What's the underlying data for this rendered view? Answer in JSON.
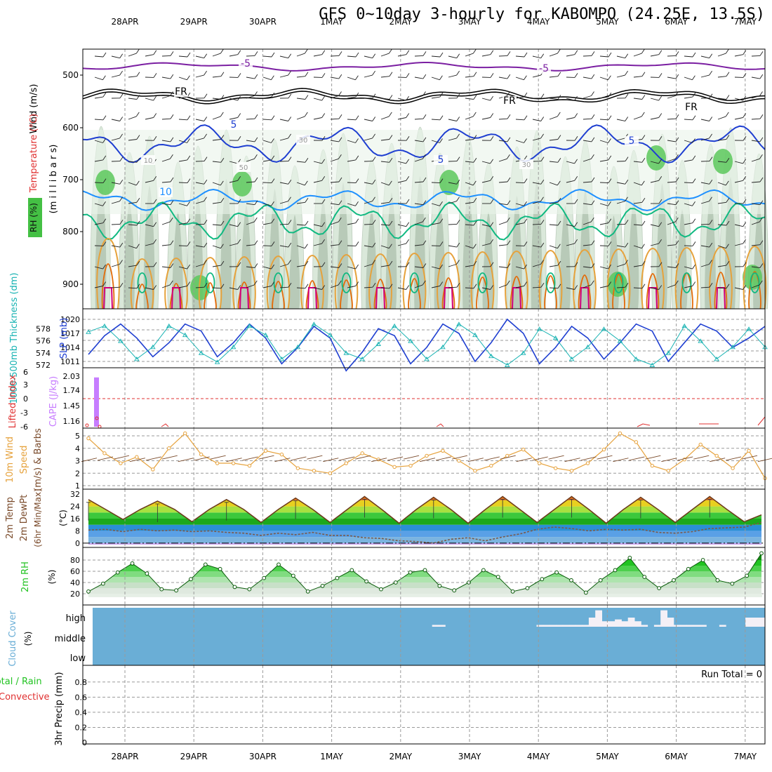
{
  "title": "GFS 0~10day 3-hourly for KABOMPO (24.25E, 13.5S)",
  "colors": {
    "purple": "#7b1fa2",
    "black": "#000000",
    "blue": "#1f3fd1",
    "lightblue": "#1e90ff",
    "teal": "#10b981",
    "orange": "#e6a23c",
    "darkorange": "#e36c0a",
    "magenta": "#d1007a",
    "cyan": "#19b3b3",
    "sea": "#6aaed6",
    "green": "#22c322",
    "rhgray": "#8fa68f",
    "violet": "#c77dff",
    "red": "#e03030",
    "brown": "#7a4a2a"
  },
  "chart_data": [
    {
      "type": "heatmap",
      "title": "Wind / Temperature (°C) / RH (%)",
      "ylabel": "(millibars)",
      "ylabel_parts": [
        "Wind (m/s)",
        "Temperature (°C)",
        "RH (%)"
      ],
      "ylabel_millibars": "(m i l l i b a r s)",
      "dates": [
        "28APR",
        "29APR",
        "30APR",
        "1MAY",
        "2MAY",
        "3MAY",
        "4MAY",
        "5MAY",
        "6MAY",
        "7MAY"
      ],
      "pressure_ticks": [
        500,
        600,
        700,
        800,
        900
      ],
      "ylim": [
        450,
        950
      ],
      "contour_labels": [
        "-5",
        "FR",
        "FR",
        "FR",
        "-5",
        "5",
        "5",
        "5",
        "10",
        "30",
        "30",
        "10",
        "50"
      ]
    },
    {
      "type": "line",
      "ylabel_left": "1000-500mb Thickness (dm)",
      "ylabel_right": "SLP (mb)",
      "left_ticks": [
        572,
        574,
        576,
        578
      ],
      "right_ticks": [
        1011,
        1014,
        1017,
        1020
      ],
      "series": [
        {
          "name": "SLP (mb)",
          "values": [
            1012.5,
            1016.5,
            1019,
            1016,
            1012,
            1015,
            1019,
            1017.5,
            1012,
            1015,
            1019,
            1016,
            1010.5,
            1014,
            1018.5,
            1016,
            1009,
            1013,
            1018,
            1016.5,
            1010.5,
            1014,
            1019,
            1017,
            1011,
            1015,
            1020,
            1017,
            1010.5,
            1014,
            1018.5,
            1016,
            1011.5,
            1015,
            1019,
            1017.5,
            1011,
            1015,
            1019,
            1017.5,
            1014,
            1016,
            1018.5
          ]
        },
        {
          "name": "1000-500mb Thickness (dm)",
          "values": [
            577.5,
            578.5,
            576,
            573,
            575,
            578.5,
            577,
            574,
            572.5,
            575,
            578.5,
            577,
            573,
            575,
            578.8,
            577,
            574,
            573,
            575.5,
            578.5,
            576,
            573,
            575,
            578.8,
            577,
            573.5,
            572,
            574,
            578,
            576.5,
            573,
            575,
            578,
            576,
            573,
            572,
            574,
            578.5,
            576,
            573,
            575,
            578,
            575
          ]
        }
      ]
    },
    {
      "type": "bar",
      "ylabel_left": "Lifted Index",
      "ylabel_right": "CAPE (J/kg)",
      "left_ticks": [
        "6",
        "3",
        "0",
        "-3",
        "-6"
      ],
      "right_ticks": [
        "1.16",
        "1.45",
        "1.74",
        "2.03"
      ],
      "bars": [
        {
          "day_index": 0.12,
          "value": 2.03
        }
      ]
    },
    {
      "type": "line",
      "ylabel": "10m Wind Speed (m/s) & Barbs",
      "ylabel_parts": [
        "10m Wind",
        "Speed",
        "(m/s) & Barbs"
      ],
      "yticks": [
        1,
        2,
        3,
        4,
        5
      ],
      "ylim": [
        0.8,
        5.5
      ],
      "series": [
        {
          "name": "10m Wind Speed",
          "values": [
            4.8,
            3.6,
            2.8,
            3.3,
            2.3,
            4.0,
            5.2,
            3.5,
            2.8,
            2.8,
            2.6,
            3.8,
            3.5,
            2.4,
            2.2,
            2.0,
            2.8,
            3.6,
            3.1,
            2.5,
            2.6,
            3.4,
            3.8,
            3.0,
            2.2,
            2.6,
            3.4,
            3.9,
            2.8,
            2.4,
            2.2,
            2.8,
            3.9,
            5.2,
            4.5,
            2.6,
            2.2,
            3.1,
            4.3,
            3.4,
            2.4,
            3.8,
            1.6
          ]
        }
      ]
    },
    {
      "type": "area",
      "ylabel": "2m Temp 2m DewPt (6hr Min/Max) (°C)",
      "ylabel_parts": [
        "2m Temp",
        "2m DewPt",
        "(6hr Min/Max)",
        "(°C)"
      ],
      "yticks": [
        0,
        8,
        16,
        24,
        32
      ],
      "ylim": [
        -1,
        33
      ],
      "series": [
        {
          "name": "2m Temp",
          "values": [
            28.5,
            22,
            15.5,
            22,
            27.5,
            22,
            14,
            22,
            28.5,
            22,
            13.5,
            22,
            29.5,
            22,
            13.5,
            22,
            30.5,
            22,
            13,
            22,
            30,
            22,
            13,
            22,
            30.5,
            22,
            13.5,
            22,
            30.5,
            22,
            13,
            22,
            30,
            22,
            13.5,
            22,
            30.5,
            22,
            14,
            18.5
          ]
        },
        {
          "name": "2m DewPt",
          "values": [
            8.5,
            9,
            7.5,
            9,
            8,
            8.5,
            7.5,
            8,
            7,
            6.5,
            5,
            6.5,
            5.5,
            7,
            5,
            5,
            3.5,
            3,
            1.5,
            1,
            0,
            2.5,
            3.5,
            1.5,
            4,
            6,
            9,
            10.5,
            9.5,
            8,
            9,
            8.5,
            9,
            7,
            6.5,
            7.5,
            9.5,
            10,
            10.5,
            13.5
          ]
        }
      ]
    },
    {
      "type": "area",
      "ylabel": "2m RH (%)",
      "yticks": [
        20,
        40,
        60,
        80
      ],
      "ylim": [
        12,
        96
      ],
      "series": [
        {
          "name": "2m RH",
          "values": [
            24,
            38,
            58,
            74,
            56,
            28,
            26,
            46,
            72,
            64,
            32,
            28,
            48,
            72,
            52,
            24,
            34,
            48,
            62,
            42,
            28,
            40,
            58,
            62,
            34,
            26,
            40,
            62,
            50,
            24,
            30,
            46,
            58,
            44,
            22,
            44,
            62,
            84,
            50,
            30,
            44,
            64,
            80,
            44,
            38,
            52,
            92
          ]
        }
      ]
    },
    {
      "type": "bar",
      "ylabel": "Cloud Cover (%)",
      "levels": [
        "high",
        "middle",
        "low"
      ],
      "high_cloud": [
        0,
        0,
        0,
        0,
        0,
        0,
        0,
        0,
        0,
        0,
        0,
        0,
        0,
        0,
        0,
        0,
        0,
        0,
        0,
        0,
        0,
        0,
        0,
        0,
        0,
        0,
        0,
        0,
        0,
        0,
        0,
        0,
        0,
        0,
        0,
        0,
        0,
        0,
        0,
        0,
        0,
        0,
        0,
        0,
        0,
        0,
        0,
        0,
        0,
        0,
        0,
        0,
        0.1,
        0.1,
        0,
        0,
        0,
        0,
        0,
        0,
        0,
        0,
        0,
        0,
        0,
        0,
        0,
        0,
        0.1,
        0.1,
        0.1,
        0.1,
        0.1,
        0.1,
        0.1,
        0.1,
        0.5,
        0.9,
        0.3,
        0.3,
        0.4,
        0.3,
        0.5,
        0.3,
        0.1,
        0,
        0.1,
        0.9,
        0.5,
        0.1,
        0.1,
        0.1,
        0.1,
        0.1,
        0,
        0,
        0.1,
        0,
        0,
        0,
        0.5,
        0.5,
        0.5
      ]
    },
    {
      "type": "bar",
      "ylabel": "3hr Precip (mm)",
      "ylabel_left": "Total / Rain",
      "ylabel_left2": "Convective",
      "yticks": [
        "0",
        "0.2",
        "0.4",
        "0.6",
        "0.8"
      ],
      "ylim": [
        0,
        0.95
      ],
      "run_total": "Run Total = 0",
      "values": []
    }
  ]
}
